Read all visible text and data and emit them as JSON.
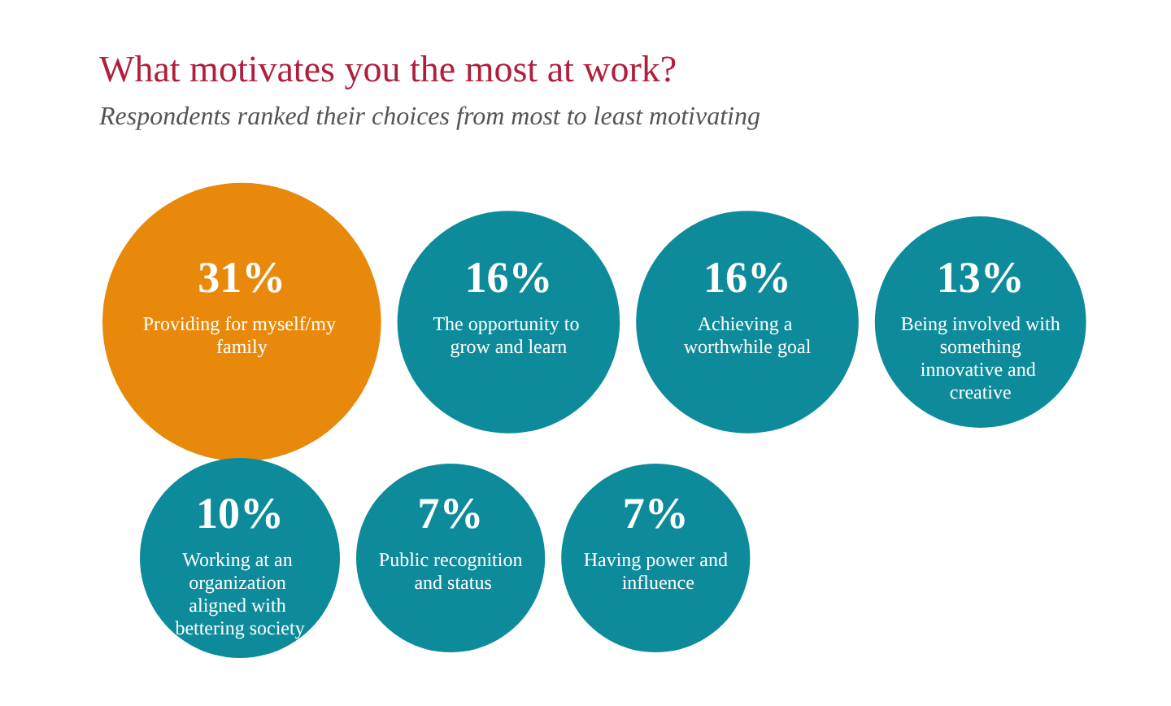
{
  "chart_data": {
    "type": "other",
    "title": "What motivates you the most at work?",
    "subtitle": "Respondents ranked their choices from most to least motivating",
    "categories": [
      "Providing for myself/my family",
      "The opportunity to grow and learn",
      "Achieving a worthwhile goal",
      "Being involved with something innovative and creative",
      "Working at an organization aligned with bettering society",
      "Public recognition and status",
      "Having power and influence"
    ],
    "values": [
      31,
      16,
      16,
      13,
      10,
      7,
      7
    ],
    "value_labels": [
      "31%",
      "16%",
      "16%",
      "13%",
      "10%",
      "7%",
      "7%"
    ],
    "colors": [
      "#e8890c",
      "#0e8b9b",
      "#0e8b9b",
      "#0e8b9b",
      "#0e8b9b",
      "#0e8b9b",
      "#0e8b9b"
    ]
  }
}
